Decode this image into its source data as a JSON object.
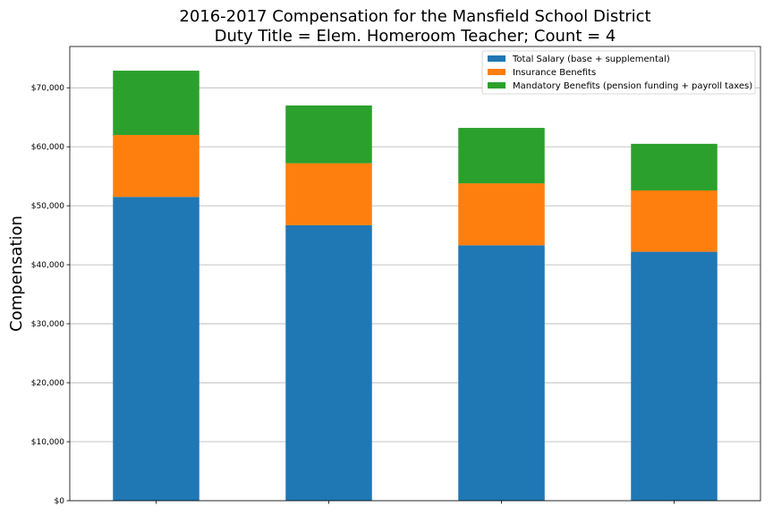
{
  "chart_data": {
    "type": "bar",
    "stacked": true,
    "title": "2016-2017 Compensation for the Mansfield School District",
    "subtitle": "Duty Title = Elem. Homeroom Teacher; Count = 4",
    "xlabel": "",
    "ylabel": "Compensation",
    "ylim": [
      0,
      77000
    ],
    "yticks": [
      0,
      10000,
      20000,
      30000,
      40000,
      50000,
      60000,
      70000
    ],
    "ytick_labels": [
      "$0",
      "$10,000",
      "$20,000",
      "$30,000",
      "$40,000",
      "$50,000",
      "$60,000",
      "$70,000"
    ],
    "grid": "y",
    "legend_position": "top-right",
    "categories": [
      "",
      "",
      "",
      ""
    ],
    "series": [
      {
        "name": "Total Salary (base + supplemental)",
        "color": "#1f77b4",
        "values": [
          51500,
          46700,
          43300,
          42200
        ]
      },
      {
        "name": "Insurance Benefits",
        "color": "#ff7f0e",
        "values": [
          10500,
          10500,
          10500,
          10400
        ]
      },
      {
        "name": "Mandatory Benefits (pension funding + payroll taxes)",
        "color": "#2ca02c",
        "values": [
          10900,
          9800,
          9400,
          7900
        ]
      }
    ]
  }
}
